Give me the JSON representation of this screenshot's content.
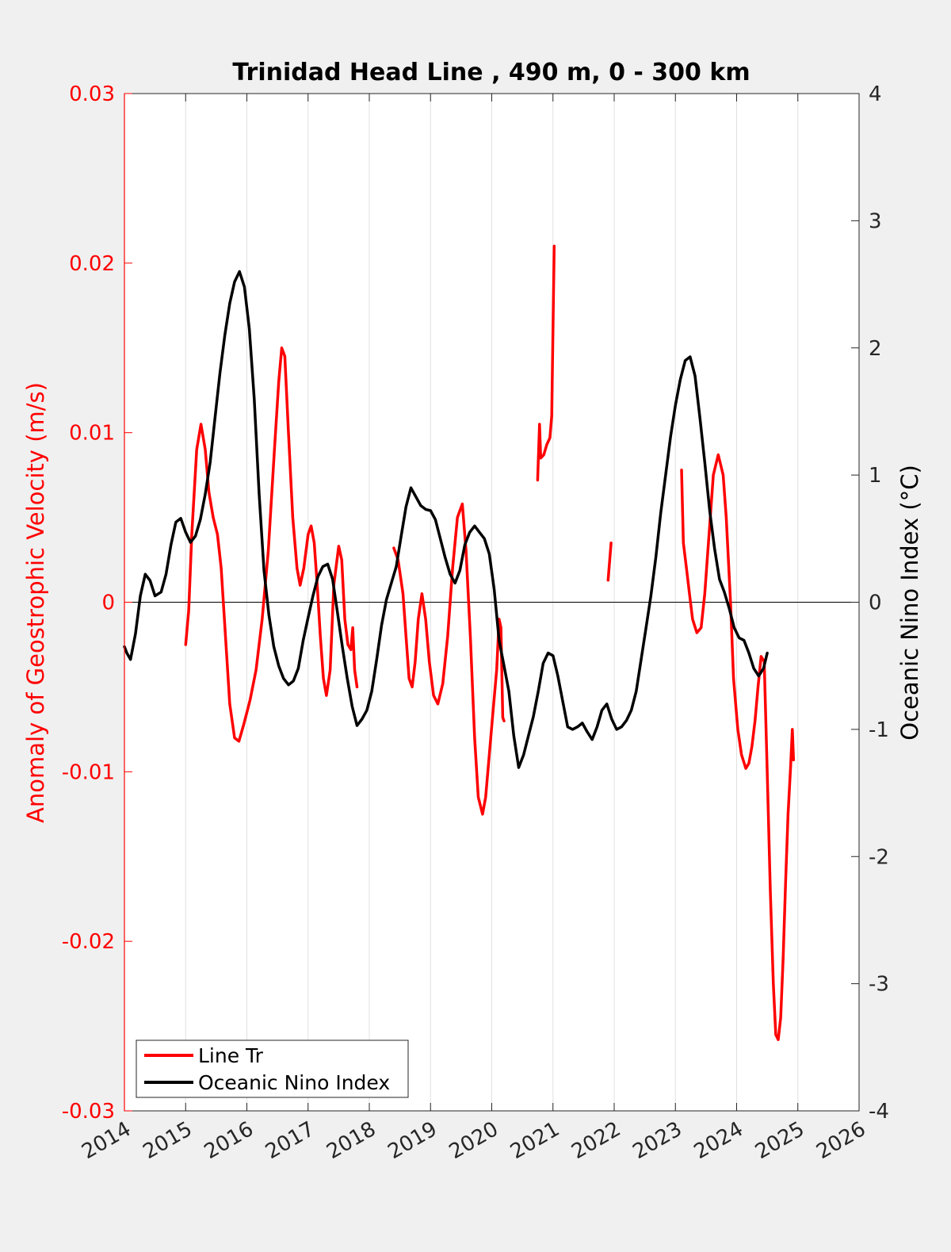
{
  "chart_data": {
    "type": "line",
    "title": "Trinidad Head Line , 490 m, 0 - 300 km",
    "xlabel": "",
    "ylabel_left": "Anomaly of Geostrophic Velocity (m/s)",
    "ylabel_right": "Oceanic Nino Index (°C)",
    "xlim": [
      2014,
      2026
    ],
    "ylim_left": [
      -0.03,
      0.03
    ],
    "ylim_right": [
      -4,
      4
    ],
    "x_ticks": [
      "2014",
      "2015",
      "2016",
      "2017",
      "2018",
      "2019",
      "2020",
      "2021",
      "2022",
      "2023",
      "2024",
      "2025",
      "2026"
    ],
    "y_left_ticks": [
      "-0.03",
      "-0.02",
      "-0.01",
      "0",
      "0.01",
      "0.02",
      "0.03"
    ],
    "y_right_ticks": [
      "-4",
      "-3",
      "-2",
      "-1",
      "0",
      "1",
      "2",
      "3",
      "4"
    ],
    "grid": "vertical",
    "legend_position": "bottom-left",
    "colors": {
      "line_tr": "#ff0000",
      "oni": "#000000",
      "left_axis": "#ff0000"
    },
    "series": [
      {
        "name": "Line Tr",
        "axis": "left",
        "segments": [
          [
            [
              2015.0,
              -0.0025
            ],
            [
              2015.05,
              -0.0005
            ],
            [
              2015.1,
              0.004
            ],
            [
              2015.18,
              0.009
            ],
            [
              2015.25,
              0.0105
            ],
            [
              2015.32,
              0.009
            ],
            [
              2015.38,
              0.0065
            ],
            [
              2015.45,
              0.005
            ],
            [
              2015.52,
              0.004
            ],
            [
              2015.58,
              0.002
            ],
            [
              2015.65,
              -0.002
            ],
            [
              2015.72,
              -0.006
            ],
            [
              2015.8,
              -0.008
            ],
            [
              2015.87,
              -0.0082
            ],
            [
              2015.95,
              -0.0072
            ],
            [
              2016.05,
              -0.0058
            ],
            [
              2016.15,
              -0.004
            ],
            [
              2016.25,
              -0.001
            ],
            [
              2016.35,
              0.003
            ],
            [
              2016.45,
              0.009
            ],
            [
              2016.52,
              0.013
            ],
            [
              2016.57,
              0.015
            ],
            [
              2016.62,
              0.0145
            ],
            [
              2016.68,
              0.01
            ],
            [
              2016.75,
              0.005
            ],
            [
              2016.82,
              0.002
            ],
            [
              2016.87,
              0.001
            ],
            [
              2016.93,
              0.002
            ],
            [
              2017.0,
              0.004
            ],
            [
              2017.05,
              0.0045
            ],
            [
              2017.1,
              0.0035
            ],
            [
              2017.15,
              0.001
            ],
            [
              2017.2,
              -0.002
            ],
            [
              2017.25,
              -0.0045
            ],
            [
              2017.3,
              -0.0055
            ],
            [
              2017.36,
              -0.004
            ],
            [
              2017.42,
              0.001
            ],
            [
              2017.5,
              0.0033
            ],
            [
              2017.55,
              0.0025
            ],
            [
              2017.6,
              -0.001
            ],
            [
              2017.65,
              -0.0025
            ],
            [
              2017.7,
              -0.0028
            ],
            [
              2017.73,
              -0.0015
            ],
            [
              2017.76,
              -0.004
            ],
            [
              2017.8,
              -0.005
            ]
          ],
          [
            [
              2018.4,
              0.0032
            ],
            [
              2018.47,
              0.0025
            ],
            [
              2018.55,
              0.0005
            ],
            [
              2018.6,
              -0.002
            ],
            [
              2018.65,
              -0.0045
            ],
            [
              2018.7,
              -0.005
            ],
            [
              2018.75,
              -0.0035
            ],
            [
              2018.8,
              -0.001
            ],
            [
              2018.86,
              0.0005
            ],
            [
              2018.92,
              -0.001
            ],
            [
              2018.98,
              -0.0035
            ],
            [
              2019.05,
              -0.0055
            ],
            [
              2019.12,
              -0.006
            ],
            [
              2019.2,
              -0.0048
            ],
            [
              2019.28,
              -0.002
            ],
            [
              2019.36,
              0.002
            ],
            [
              2019.44,
              0.005
            ],
            [
              2019.52,
              0.0058
            ],
            [
              2019.58,
              0.003
            ],
            [
              2019.65,
              -0.002
            ],
            [
              2019.72,
              -0.008
            ],
            [
              2019.78,
              -0.0115
            ],
            [
              2019.85,
              -0.0125
            ],
            [
              2019.9,
              -0.0115
            ],
            [
              2019.96,
              -0.009
            ],
            [
              2020.02,
              -0.0065
            ],
            [
              2020.08,
              -0.004
            ],
            [
              2020.12,
              -0.001
            ],
            [
              2020.15,
              -0.0015
            ],
            [
              2020.18,
              -0.0068
            ],
            [
              2020.2,
              -0.007
            ]
          ],
          [
            [
              2020.75,
              0.0072
            ],
            [
              2020.78,
              0.0105
            ],
            [
              2020.8,
              0.0085
            ],
            [
              2020.85,
              0.0087
            ],
            [
              2020.9,
              0.0093
            ],
            [
              2020.95,
              0.0097
            ],
            [
              2020.98,
              0.011
            ],
            [
              2021.02,
              0.021
            ]
          ],
          [
            [
              2021.9,
              0.0013
            ],
            [
              2021.95,
              0.0035
            ]
          ],
          [
            [
              2023.1,
              0.0078
            ],
            [
              2023.13,
              0.0035
            ],
            [
              2023.18,
              0.002
            ],
            [
              2023.23,
              0.0005
            ],
            [
              2023.28,
              -0.001
            ],
            [
              2023.35,
              -0.0018
            ],
            [
              2023.42,
              -0.0015
            ],
            [
              2023.48,
              0.0005
            ],
            [
              2023.55,
              0.004
            ],
            [
              2023.62,
              0.0075
            ],
            [
              2023.7,
              0.0087
            ],
            [
              2023.78,
              0.0075
            ],
            [
              2023.83,
              0.005
            ],
            [
              2023.9,
              0.0
            ],
            [
              2023.95,
              -0.0045
            ],
            [
              2024.02,
              -0.0075
            ],
            [
              2024.08,
              -0.009
            ],
            [
              2024.15,
              -0.0098
            ],
            [
              2024.2,
              -0.0095
            ],
            [
              2024.25,
              -0.0085
            ],
            [
              2024.3,
              -0.007
            ],
            [
              2024.35,
              -0.005
            ],
            [
              2024.4,
              -0.0032
            ],
            [
              2024.45,
              -0.0035
            ],
            [
              2024.5,
              -0.01
            ],
            [
              2024.55,
              -0.017
            ],
            [
              2024.6,
              -0.0225
            ],
            [
              2024.64,
              -0.0255
            ],
            [
              2024.68,
              -0.0258
            ],
            [
              2024.72,
              -0.0245
            ],
            [
              2024.76,
              -0.021
            ],
            [
              2024.8,
              -0.0165
            ],
            [
              2024.84,
              -0.0125
            ],
            [
              2024.88,
              -0.0098
            ],
            [
              2024.91,
              -0.0075
            ],
            [
              2024.93,
              -0.0093
            ]
          ]
        ]
      },
      {
        "name": "Oceanic Nino Index",
        "axis": "right",
        "points": [
          [
            2014.0,
            -0.35
          ],
          [
            2014.04,
            -0.4
          ],
          [
            2014.1,
            -0.45
          ],
          [
            2014.18,
            -0.25
          ],
          [
            2014.26,
            0.05
          ],
          [
            2014.34,
            0.22
          ],
          [
            2014.42,
            0.17
          ],
          [
            2014.5,
            0.05
          ],
          [
            2014.6,
            0.08
          ],
          [
            2014.68,
            0.22
          ],
          [
            2014.76,
            0.45
          ],
          [
            2014.84,
            0.63
          ],
          [
            2014.92,
            0.66
          ],
          [
            2015.0,
            0.55
          ],
          [
            2015.08,
            0.47
          ],
          [
            2015.16,
            0.52
          ],
          [
            2015.24,
            0.65
          ],
          [
            2015.32,
            0.85
          ],
          [
            2015.4,
            1.1
          ],
          [
            2015.48,
            1.45
          ],
          [
            2015.56,
            1.8
          ],
          [
            2015.64,
            2.1
          ],
          [
            2015.72,
            2.35
          ],
          [
            2015.8,
            2.52
          ],
          [
            2015.88,
            2.6
          ],
          [
            2015.96,
            2.48
          ],
          [
            2016.04,
            2.15
          ],
          [
            2016.12,
            1.6
          ],
          [
            2016.2,
            0.85
          ],
          [
            2016.28,
            0.25
          ],
          [
            2016.36,
            -0.1
          ],
          [
            2016.44,
            -0.35
          ],
          [
            2016.52,
            -0.5
          ],
          [
            2016.6,
            -0.6
          ],
          [
            2016.68,
            -0.65
          ],
          [
            2016.76,
            -0.62
          ],
          [
            2016.84,
            -0.52
          ],
          [
            2016.92,
            -0.3
          ],
          [
            2017.0,
            -0.12
          ],
          [
            2017.08,
            0.05
          ],
          [
            2017.16,
            0.2
          ],
          [
            2017.24,
            0.28
          ],
          [
            2017.32,
            0.3
          ],
          [
            2017.4,
            0.18
          ],
          [
            2017.48,
            -0.08
          ],
          [
            2017.56,
            -0.35
          ],
          [
            2017.64,
            -0.6
          ],
          [
            2017.72,
            -0.82
          ],
          [
            2017.8,
            -0.97
          ],
          [
            2017.88,
            -0.92
          ],
          [
            2017.96,
            -0.85
          ],
          [
            2018.04,
            -0.7
          ],
          [
            2018.12,
            -0.45
          ],
          [
            2018.2,
            -0.18
          ],
          [
            2018.28,
            0.02
          ],
          [
            2018.36,
            0.15
          ],
          [
            2018.44,
            0.28
          ],
          [
            2018.52,
            0.52
          ],
          [
            2018.6,
            0.75
          ],
          [
            2018.68,
            0.9
          ],
          [
            2018.76,
            0.83
          ],
          [
            2018.84,
            0.76
          ],
          [
            2018.92,
            0.73
          ],
          [
            2019.0,
            0.72
          ],
          [
            2019.08,
            0.65
          ],
          [
            2019.16,
            0.5
          ],
          [
            2019.24,
            0.35
          ],
          [
            2019.32,
            0.22
          ],
          [
            2019.4,
            0.15
          ],
          [
            2019.48,
            0.25
          ],
          [
            2019.56,
            0.45
          ],
          [
            2019.64,
            0.55
          ],
          [
            2019.72,
            0.6
          ],
          [
            2019.8,
            0.55
          ],
          [
            2019.88,
            0.5
          ],
          [
            2019.96,
            0.38
          ],
          [
            2020.04,
            0.1
          ],
          [
            2020.12,
            -0.3
          ],
          [
            2020.2,
            -0.5
          ],
          [
            2020.28,
            -0.7
          ],
          [
            2020.36,
            -1.05
          ],
          [
            2020.44,
            -1.3
          ],
          [
            2020.52,
            -1.2
          ],
          [
            2020.6,
            -1.05
          ],
          [
            2020.68,
            -0.9
          ],
          [
            2020.76,
            -0.7
          ],
          [
            2020.84,
            -0.48
          ],
          [
            2020.92,
            -0.4
          ],
          [
            2021.0,
            -0.42
          ],
          [
            2021.08,
            -0.58
          ],
          [
            2021.16,
            -0.78
          ],
          [
            2021.24,
            -0.98
          ],
          [
            2021.32,
            -1.0
          ],
          [
            2021.4,
            -0.98
          ],
          [
            2021.48,
            -0.95
          ],
          [
            2021.56,
            -1.02
          ],
          [
            2021.64,
            -1.08
          ],
          [
            2021.72,
            -0.98
          ],
          [
            2021.8,
            -0.85
          ],
          [
            2021.88,
            -0.8
          ],
          [
            2021.96,
            -0.92
          ],
          [
            2022.04,
            -1.0
          ],
          [
            2022.12,
            -0.98
          ],
          [
            2022.2,
            -0.93
          ],
          [
            2022.28,
            -0.85
          ],
          [
            2022.36,
            -0.7
          ],
          [
            2022.44,
            -0.45
          ],
          [
            2022.52,
            -0.2
          ],
          [
            2022.6,
            0.05
          ],
          [
            2022.68,
            0.35
          ],
          [
            2022.76,
            0.7
          ],
          [
            2022.84,
            1.0
          ],
          [
            2022.92,
            1.3
          ],
          [
            2023.0,
            1.55
          ],
          [
            2023.08,
            1.75
          ],
          [
            2023.16,
            1.9
          ],
          [
            2023.24,
            1.93
          ],
          [
            2023.32,
            1.78
          ],
          [
            2023.4,
            1.45
          ],
          [
            2023.48,
            1.1
          ],
          [
            2023.56,
            0.72
          ],
          [
            2023.64,
            0.42
          ],
          [
            2023.72,
            0.18
          ],
          [
            2023.8,
            0.08
          ],
          [
            2023.88,
            -0.05
          ],
          [
            2023.96,
            -0.2
          ],
          [
            2024.04,
            -0.28
          ],
          [
            2024.12,
            -0.3
          ],
          [
            2024.2,
            -0.4
          ],
          [
            2024.28,
            -0.52
          ],
          [
            2024.36,
            -0.58
          ],
          [
            2024.44,
            -0.52
          ],
          [
            2024.5,
            -0.4
          ]
        ]
      }
    ],
    "legend": [
      {
        "label": "Line Tr",
        "series": "Line Tr"
      },
      {
        "label": "Oceanic Nino Index",
        "series": "Oceanic Nino Index"
      }
    ]
  }
}
